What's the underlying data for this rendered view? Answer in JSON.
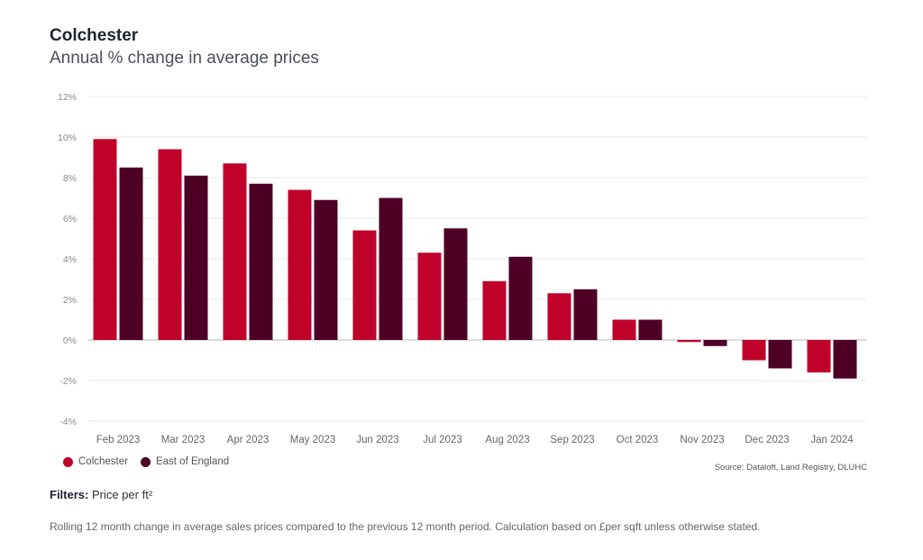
{
  "header": {
    "title": "Colchester",
    "subtitle": "Annual % change in average prices"
  },
  "legend": [
    {
      "label": "Colchester",
      "color": "#c0022b"
    },
    {
      "label": "East of England",
      "color": "#4e0024"
    }
  ],
  "source": "Source: Dataloft, Land Registry, DLUHC",
  "filters": {
    "label": "Filters:",
    "value": "Price per ft²"
  },
  "note": "Rolling 12 month change in average sales prices compared to the previous 12 month period. Calculation based on £per sqft unless otherwise stated.",
  "chart_data": {
    "type": "bar",
    "title": "Annual % change in average prices",
    "xlabel": "",
    "ylabel": "",
    "ylim": [
      -4,
      12
    ],
    "yticks": [
      -4,
      -2,
      0,
      2,
      4,
      6,
      8,
      10,
      12
    ],
    "ytick_labels": [
      "-4%",
      "-2%",
      "0%",
      "2%",
      "4%",
      "6%",
      "8%",
      "10%",
      "12%"
    ],
    "grid": true,
    "legend_position": "bottom-left",
    "categories": [
      "Feb 2023",
      "Mar 2023",
      "Apr 2023",
      "May 2023",
      "Jun 2023",
      "Jul 2023",
      "Aug 2023",
      "Sep 2023",
      "Oct 2023",
      "Nov 2023",
      "Dec 2023",
      "Jan 2024"
    ],
    "series": [
      {
        "name": "Colchester",
        "color": "#c0022b",
        "values": [
          9.9,
          9.4,
          8.7,
          7.4,
          5.4,
          4.3,
          2.9,
          2.3,
          1.0,
          -0.1,
          -1.0,
          -1.6
        ]
      },
      {
        "name": "East of England",
        "color": "#4e0024",
        "values": [
          8.5,
          8.1,
          7.7,
          6.9,
          7.0,
          5.5,
          4.1,
          2.5,
          1.0,
          -0.3,
          -1.4,
          -1.9
        ]
      }
    ]
  }
}
